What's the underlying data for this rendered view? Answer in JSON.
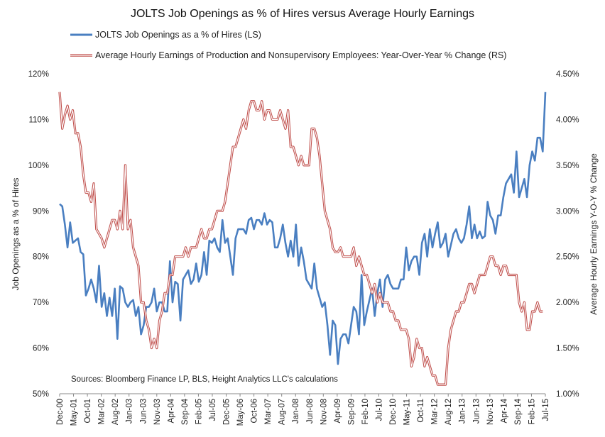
{
  "chart_data": {
    "type": "line",
    "title": "JOLTS Job Openings as % of Hires versus Average Hourly Earnings",
    "ylabel_left": "Job Openings as a % of Hires",
    "ylabel_right": "Average Hourly Earnings Y-O-Y % Change",
    "ylim_left": [
      50,
      120
    ],
    "ylim_right": [
      1.0,
      4.5
    ],
    "left_tick_labels": [
      "50%",
      "60%",
      "70%",
      "80%",
      "90%",
      "100%",
      "110%",
      "120%"
    ],
    "right_tick_labels": [
      "1.00%",
      "1.50%",
      "2.00%",
      "2.50%",
      "3.00%",
      "3.50%",
      "4.00%",
      "4.50%"
    ],
    "x_tick_labels": [
      "Dec-00",
      "May-01",
      "Oct-01",
      "Mar-02",
      "Aug-02",
      "Jan-03",
      "Jun-03",
      "Nov-03",
      "Apr-04",
      "Sep-04",
      "Feb-05",
      "Jul-05",
      "Dec-05",
      "May-06",
      "Oct-06",
      "Mar-07",
      "Aug-07",
      "Jan-08",
      "Jun-08",
      "Nov-08",
      "Apr-09",
      "Sep-09",
      "Feb-10",
      "Jul-10",
      "Dec-10",
      "May-11",
      "Oct-11",
      "Mar-12",
      "Aug-12",
      "Jan-13",
      "Jun-13",
      "Nov-13",
      "Apr-14",
      "Sep-14",
      "Feb-15",
      "Jul-15"
    ],
    "x_start": "Dec-00",
    "x_end": "Jul-15",
    "source_note": "Sources: Bloomberg Finance LP, BLS, Height Analytics LLC's calculations",
    "grid": false,
    "legend_position": "top",
    "series": [
      {
        "name": "JOLTS Job Openings as a % of Hires (LS)",
        "axis": "left",
        "color": "#4a7fc1",
        "style": "solid",
        "values": [
          91.5,
          91,
          87,
          82,
          87.5,
          83,
          83.5,
          84,
          81,
          80.5,
          71.5,
          73,
          75,
          73,
          70,
          78,
          69,
          72,
          67,
          71,
          67,
          73,
          62,
          73.5,
          73,
          70,
          69,
          70,
          70.5,
          67,
          69,
          63,
          65,
          69,
          69,
          70,
          73,
          68,
          70,
          70,
          68,
          68,
          79,
          70,
          74.5,
          74,
          66,
          75,
          76,
          77,
          74,
          75,
          78.5,
          74.5,
          76,
          81,
          76,
          83.5,
          83,
          84,
          82,
          81,
          88,
          83,
          84,
          80,
          76,
          84,
          86,
          86,
          86,
          85,
          88,
          88.5,
          86,
          88,
          88,
          87,
          89.5,
          87,
          88,
          87.5,
          82,
          82,
          84,
          87,
          83,
          80,
          83.5,
          80,
          87,
          78,
          82,
          79,
          75,
          74,
          73,
          78.5,
          73,
          71,
          69,
          70,
          65,
          58.5,
          66,
          65,
          56.5,
          62,
          63,
          63,
          61,
          65,
          69,
          68,
          63,
          76,
          65,
          68,
          70.5,
          73,
          67,
          72,
          75,
          69,
          75,
          76,
          74,
          73,
          73,
          73,
          75,
          75,
          82,
          77,
          79,
          80,
          80,
          76,
          83,
          85,
          80,
          86,
          82,
          85,
          87.5,
          82,
          83,
          85,
          80,
          82.5,
          85,
          86,
          84,
          83,
          84,
          87,
          91,
          84,
          87,
          84,
          85.5,
          84,
          84.5,
          92,
          89,
          88,
          85,
          89,
          89,
          93,
          96,
          97,
          98,
          94,
          103,
          93,
          95,
          97,
          93,
          100,
          103,
          101,
          106,
          106,
          103,
          116
        ]
      },
      {
        "name": "Average Hourly Earnings of Production and Nonsupervisory Employees: Year-Over-Year % Change (RS)",
        "axis": "right",
        "color": "#c0504d",
        "style": "double",
        "values": [
          4.3,
          3.9,
          4.05,
          4.15,
          4.0,
          4.1,
          3.85,
          3.85,
          3.7,
          3.4,
          3.2,
          3.2,
          3.1,
          3.3,
          2.8,
          2.75,
          2.7,
          2.6,
          2.7,
          2.8,
          2.9,
          2.9,
          2.8,
          3.0,
          2.8,
          3.5,
          2.8,
          2.9,
          2.6,
          2.5,
          2.4,
          2.0,
          2.0,
          1.8,
          1.7,
          1.5,
          1.6,
          1.5,
          1.8,
          1.9,
          2.1,
          2.1,
          2.3,
          2.3,
          2.5,
          2.5,
          2.5,
          2.5,
          2.6,
          2.5,
          2.6,
          2.6,
          2.6,
          2.7,
          2.8,
          2.7,
          2.7,
          2.8,
          2.8,
          2.9,
          3.0,
          3.0,
          3.0,
          3.1,
          3.3,
          3.5,
          3.7,
          3.7,
          3.8,
          3.9,
          4.0,
          3.9,
          4.1,
          4.2,
          4.2,
          4.1,
          4.1,
          4.2,
          4.0,
          4.1,
          4.1,
          4.0,
          4.0,
          4.0,
          4.1,
          4.0,
          3.9,
          4.1,
          3.7,
          3.7,
          3.6,
          3.5,
          3.6,
          3.5,
          3.5,
          3.5,
          3.9,
          3.9,
          3.8,
          3.6,
          3.3,
          3.0,
          2.9,
          2.8,
          2.6,
          2.55,
          2.55,
          2.6,
          2.5,
          2.5,
          2.5,
          2.5,
          2.6,
          2.4,
          2.5,
          2.4,
          2.3,
          2.3,
          2.2,
          2.1,
          2.2,
          2.0,
          2.1,
          2.0,
          2.0,
          2.0,
          1.9,
          1.9,
          1.8,
          1.8,
          1.7,
          1.7,
          1.7,
          1.6,
          1.3,
          1.4,
          1.6,
          1.5,
          1.5,
          1.3,
          1.4,
          1.3,
          1.2,
          1.2,
          1.1,
          1.1,
          1.1,
          1.1,
          1.5,
          1.7,
          1.8,
          1.9,
          1.9,
          2.0,
          2.0,
          2.1,
          2.2,
          2.2,
          2.1,
          2.2,
          2.3,
          2.3,
          2.3,
          2.4,
          2.5,
          2.5,
          2.4,
          2.4,
          2.3,
          2.4,
          2.4,
          2.3,
          2.3,
          2.3,
          2.3,
          2.0,
          1.9,
          2.0,
          1.7,
          1.7,
          1.9,
          1.9,
          2.0,
          1.9,
          1.9
        ]
      }
    ]
  }
}
